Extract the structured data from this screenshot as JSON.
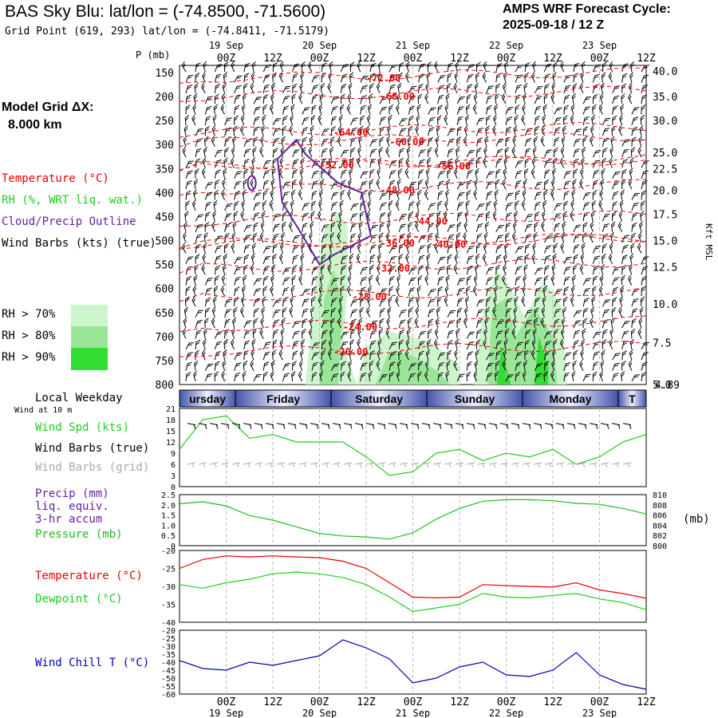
{
  "header": {
    "title": "BAS Sky Blu:  lat/lon = (-74.8500, -71.5600)",
    "subtitle": "Grid Point (619, 293) lat/lon = (-74.8411, -71.5179)",
    "cycle_label": "AMPS WRF Forecast Cycle:",
    "cycle_value": "2025-09-18 / 12  Z"
  },
  "model_grid": {
    "label": "Model Grid ΔX:",
    "value": "8.000 km"
  },
  "legend_top": {
    "temperature": "Temperature (°C)",
    "rh": "RH (%, WRT liq. wat.)",
    "cloud": "Cloud/Precip Outline",
    "wind": "Wind Barbs (kts) (true)",
    "rh70": "RH > 70%",
    "rh80": "RH > 80%",
    "rh90": "RH > 90%"
  },
  "colors": {
    "temp": "#ee0000",
    "rh70": "#ccf5cc",
    "rh80": "#99e699",
    "rh90": "#33dd33",
    "cloud": "#662299",
    "wind_spd": "#22cc22",
    "pressure": "#22bb22",
    "temp2m": "#ee0000",
    "dewpoint": "#22cc22",
    "windchill": "#0000bb",
    "grid_barb": "#aaaaaa"
  },
  "time_axis": {
    "top_dates": [
      "19 Sep",
      "20 Sep",
      "21 Sep",
      "22 Sep",
      "23 Sep"
    ],
    "ticks": [
      "00Z",
      "12Z",
      "00Z",
      "12Z",
      "00Z",
      "12Z",
      "00Z",
      "12Z",
      "00Z",
      "12Z"
    ],
    "bottom_dates": [
      "19 Sep",
      "20 Sep",
      "21 Sep",
      "22 Sep",
      "23 Sep"
    ],
    "weekdays": [
      "ursday",
      "Friday",
      "Saturday",
      "Sunday",
      "Monday",
      "T"
    ],
    "weekday_title": "Local Weekday",
    "wind_at": "Wind at 10 m"
  },
  "chart_data": [
    {
      "type": "heatmap",
      "name": "time-height cross section",
      "ylabel": "P (mb)",
      "y_left_ticks": [
        "150",
        "200",
        "250",
        "300",
        "350",
        "400",
        "450",
        "500",
        "550",
        "600",
        "650",
        "700",
        "750",
        "800"
      ],
      "y_right_label": "Kft MSL",
      "y_right_ticks": [
        "40.0",
        "35.0",
        "30.0",
        "25.0",
        "22.5",
        "20.0",
        "17.5",
        "15.0",
        "12.5",
        "10.0",
        "7.5",
        "5.0"
      ],
      "y_right_extra": "4.89",
      "ylim": [
        800,
        135
      ],
      "temperature_contours": [
        {
          "label": "-72.00",
          "t": 0.4,
          "p": 162
        },
        {
          "label": "-68.00",
          "t": 0.43,
          "p": 200
        },
        {
          "label": "-64.00",
          "t": 0.33,
          "p": 275
        },
        {
          "label": "-60.00",
          "t": 0.45,
          "p": 295
        },
        {
          "label": "-56.00",
          "t": 0.55,
          "p": 345
        },
        {
          "label": "-52.00",
          "t": 0.3,
          "p": 343
        },
        {
          "label": "-48.00",
          "t": 0.43,
          "p": 395
        },
        {
          "label": "-44.00",
          "t": 0.5,
          "p": 460
        },
        {
          "label": "-40.00",
          "t": 0.54,
          "p": 508
        },
        {
          "label": "-36.00",
          "t": 0.43,
          "p": 506
        },
        {
          "label": "-32.00",
          "t": 0.42,
          "p": 558
        },
        {
          "label": "-28.00",
          "t": 0.37,
          "p": 617
        },
        {
          "label": "-24.00",
          "t": 0.35,
          "p": 680
        },
        {
          "label": "-20.00",
          "t": 0.33,
          "p": 732
        }
      ]
    },
    {
      "type": "line",
      "name": "wind speed",
      "legend": [
        "Wind Spd (kts)",
        "Wind Barbs (true)",
        "Wind Barbs (grid)"
      ],
      "y_ticks": [
        "21",
        "18",
        "15",
        "12",
        "9",
        "6",
        "3",
        "0"
      ],
      "ylim": [
        0,
        21
      ],
      "x": [
        0,
        0.05,
        0.1,
        0.15,
        0.2,
        0.25,
        0.3,
        0.35,
        0.4,
        0.45,
        0.5,
        0.55,
        0.6,
        0.65,
        0.7,
        0.75,
        0.8,
        0.85,
        0.9,
        0.95,
        1.0
      ],
      "values": [
        10,
        18,
        19,
        13,
        14,
        12,
        12,
        12,
        8,
        3,
        4,
        9,
        10,
        7,
        9,
        8,
        10,
        6,
        8,
        12,
        14
      ]
    },
    {
      "type": "line",
      "name": "precip and pressure",
      "legend": [
        "Precip (mm)",
        "liq. equiv.",
        "3-hr accum",
        "Pressure (mb)"
      ],
      "y_left_ticks": [
        "2.5",
        "2.0",
        "1.5",
        "1.0",
        "0.5",
        "0"
      ],
      "y_right_ticks": [
        "810",
        "808",
        "806",
        "804",
        "802",
        "800"
      ],
      "y_right_label": "(mb)",
      "ylim": [
        800,
        810
      ],
      "x": [
        0,
        0.05,
        0.1,
        0.15,
        0.2,
        0.25,
        0.3,
        0.35,
        0.4,
        0.45,
        0.5,
        0.55,
        0.6,
        0.65,
        0.7,
        0.75,
        0.8,
        0.85,
        0.9,
        0.95,
        1.0
      ],
      "values": [
        808.2,
        808.6,
        807.8,
        805.9,
        805.0,
        803.7,
        802.4,
        801.9,
        801.7,
        801.3,
        802.5,
        805.2,
        807.3,
        808.7,
        809.0,
        809.0,
        808.8,
        808.3,
        808.1,
        807.3,
        806.2
      ]
    },
    {
      "type": "line",
      "name": "temperature and dewpoint",
      "legend": [
        "Temperature (°C)",
        "Dewpoint (°C)"
      ],
      "y_ticks": [
        "-20",
        "-25",
        "-30",
        "-35",
        "-40"
      ],
      "ylim": [
        -40,
        -20
      ],
      "series": [
        {
          "name": "Temperature",
          "x": [
            0,
            0.05,
            0.1,
            0.15,
            0.2,
            0.25,
            0.3,
            0.35,
            0.4,
            0.45,
            0.5,
            0.55,
            0.6,
            0.65,
            0.7,
            0.75,
            0.8,
            0.85,
            0.9,
            0.95,
            1.0
          ],
          "values": [
            -25,
            -22.5,
            -21.5,
            -21.8,
            -21.5,
            -21.8,
            -22,
            -23,
            -25,
            -29,
            -33,
            -33.2,
            -33,
            -29.5,
            -29.8,
            -30,
            -30.2,
            -29,
            -31,
            -32,
            -33.3
          ]
        },
        {
          "name": "Dewpoint",
          "x": [
            0,
            0.05,
            0.1,
            0.15,
            0.2,
            0.25,
            0.3,
            0.35,
            0.4,
            0.45,
            0.5,
            0.55,
            0.6,
            0.65,
            0.7,
            0.75,
            0.8,
            0.85,
            0.9,
            0.95,
            1.0
          ],
          "values": [
            -29.5,
            -30.5,
            -29,
            -28,
            -26.5,
            -26,
            -26.5,
            -27.5,
            -29.5,
            -33,
            -37,
            -36,
            -35,
            -32,
            -33,
            -33.2,
            -32.5,
            -32,
            -33.5,
            -34.5,
            -36.5
          ]
        }
      ]
    },
    {
      "type": "line",
      "name": "wind chill",
      "legend": [
        "Wind Chill T (°C)"
      ],
      "y_ticks": [
        "-20",
        "-25",
        "-30",
        "-35",
        "-40",
        "-45",
        "-50",
        "-55",
        "-60"
      ],
      "ylim": [
        -60,
        -20
      ],
      "x": [
        0,
        0.05,
        0.1,
        0.15,
        0.2,
        0.25,
        0.3,
        0.35,
        0.4,
        0.45,
        0.5,
        0.55,
        0.6,
        0.65,
        0.7,
        0.75,
        0.8,
        0.85,
        0.9,
        0.95,
        1.0
      ],
      "values": [
        -39,
        -44,
        -45,
        -40,
        -42,
        -39,
        -36,
        -26,
        -31,
        -38,
        -53,
        -50,
        -43,
        -40,
        -48,
        -49,
        -45,
        -34,
        -48,
        -54,
        -57
      ]
    }
  ]
}
